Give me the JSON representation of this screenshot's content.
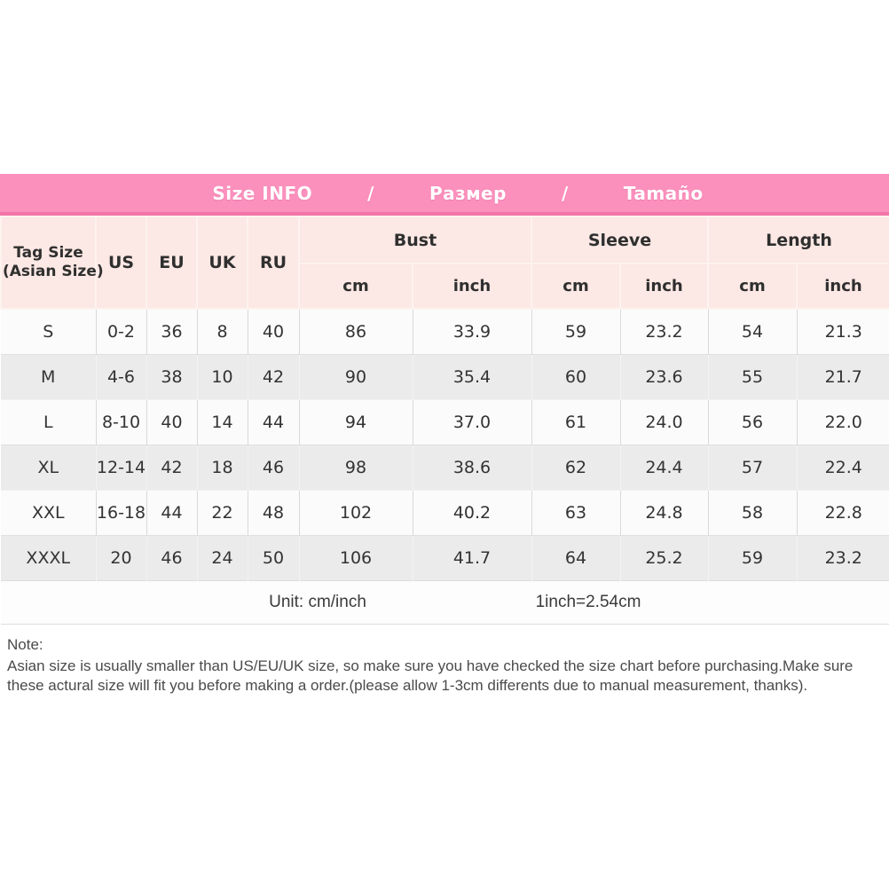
{
  "banner": {
    "parts": [
      "Size INFO",
      "/",
      "Размер",
      "/",
      "Tamaño"
    ]
  },
  "size_table": {
    "corner": {
      "line1": "Tag Size",
      "line2": "(Asian Size)"
    },
    "size_cols": [
      "US",
      "EU",
      "UK",
      "RU"
    ],
    "measure_groups": [
      "Bust",
      "Sleeve",
      "Length"
    ],
    "sub_headers": [
      "cm",
      "inch",
      "cm",
      "inch",
      "cm",
      "inch"
    ],
    "rows": [
      {
        "tag": "S",
        "values": [
          "0-2",
          "36",
          "8",
          "40",
          "86",
          "33.9",
          "59",
          "23.2",
          "54",
          "21.3"
        ]
      },
      {
        "tag": "M",
        "values": [
          "4-6",
          "38",
          "10",
          "42",
          "90",
          "35.4",
          "60",
          "23.6",
          "55",
          "21.7"
        ]
      },
      {
        "tag": "L",
        "values": [
          "8-10",
          "40",
          "14",
          "44",
          "94",
          "37.0",
          "61",
          "24.0",
          "56",
          "22.0"
        ]
      },
      {
        "tag": "XL",
        "values": [
          "12-14",
          "42",
          "18",
          "46",
          "98",
          "38.6",
          "62",
          "24.4",
          "57",
          "22.4"
        ]
      },
      {
        "tag": "XXL",
        "values": [
          "16-18",
          "44",
          "22",
          "48",
          "102",
          "40.2",
          "63",
          "24.8",
          "58",
          "22.8"
        ]
      },
      {
        "tag": "XXXL",
        "values": [
          "20",
          "46",
          "24",
          "50",
          "106",
          "41.7",
          "64",
          "25.2",
          "59",
          "23.2"
        ]
      }
    ],
    "footer": {
      "unit_label": "Unit: cm/inch",
      "conversion": "1inch=2.54cm"
    }
  },
  "note": {
    "label": "Note:",
    "body": "Asian size is usually smaller than US/EU/UK size, so make sure you have checked the size chart before purchasing.Make sure these actural size will fit you before making a order.(please allow 1-3cm differents due to manual measurement, thanks)."
  },
  "colors": {
    "banner_pink": "#fb90bd",
    "banner_border_pink": "#f375a9",
    "header_cell_bg": "#fce8e4",
    "header_divider": "#fdf3ef",
    "row_bg": "#fbfbfb",
    "row_alt_bg": "#ebebeb",
    "cell_border": "#d9d9d9",
    "text_dark": "#333333",
    "banner_text": "#ffffff"
  }
}
